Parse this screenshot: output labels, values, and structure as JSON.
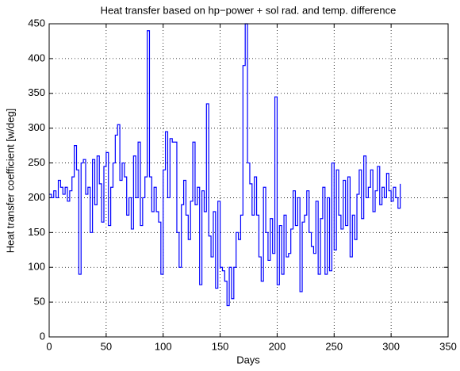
{
  "chart_data": {
    "type": "stairs",
    "title": "Heat transfer based on hp−power + sol rad. and temp. difference",
    "xlabel": "Days",
    "ylabel": "Heat transfer coefficient [w/deg]",
    "xlim": [
      0,
      350
    ],
    "xticks": [
      0,
      50,
      100,
      150,
      200,
      250,
      300,
      350
    ],
    "ylim": [
      0,
      450
    ],
    "yticks": [
      0,
      50,
      100,
      150,
      200,
      250,
      300,
      350,
      400,
      450
    ],
    "grid": true,
    "series": [
      {
        "color": "#0000ff",
        "x": [
          0,
          2,
          4,
          6,
          8,
          10,
          12,
          14,
          16,
          18,
          20,
          22,
          24,
          26,
          28,
          30,
          32,
          34,
          36,
          38,
          40,
          42,
          44,
          46,
          48,
          50,
          52,
          54,
          56,
          58,
          60,
          62,
          64,
          66,
          68,
          70,
          72,
          74,
          76,
          78,
          80,
          82,
          84,
          86,
          88,
          90,
          92,
          94,
          96,
          98,
          100,
          102,
          104,
          106,
          108,
          110,
          112,
          114,
          116,
          118,
          120,
          122,
          124,
          126,
          128,
          130,
          132,
          134,
          136,
          138,
          140,
          142,
          144,
          146,
          148,
          150,
          152,
          154,
          156,
          158,
          160,
          162,
          164,
          166,
          168,
          170,
          172,
          174,
          176,
          178,
          180,
          182,
          184,
          186,
          188,
          190,
          192,
          194,
          196,
          198,
          200,
          202,
          204,
          206,
          208,
          210,
          212,
          214,
          216,
          218,
          220,
          222,
          224,
          226,
          228,
          230,
          232,
          234,
          236,
          238,
          240,
          242,
          244,
          246,
          248,
          250,
          252,
          254,
          256,
          258,
          260,
          262,
          264,
          266,
          268,
          270,
          272,
          274,
          276,
          278,
          280,
          282,
          284,
          286,
          288,
          290,
          292,
          294,
          296,
          298,
          300,
          302,
          304,
          306,
          308
        ],
        "values": [
          205,
          200,
          210,
          200,
          225,
          215,
          205,
          215,
          195,
          210,
          230,
          275,
          240,
          90,
          250,
          255,
          205,
          215,
          150,
          255,
          190,
          260,
          220,
          165,
          245,
          265,
          160,
          215,
          250,
          290,
          305,
          225,
          250,
          230,
          175,
          200,
          155,
          260,
          200,
          280,
          160,
          200,
          230,
          440,
          230,
          180,
          215,
          180,
          165,
          90,
          240,
          295,
          200,
          285,
          280,
          280,
          150,
          100,
          190,
          225,
          175,
          140,
          195,
          280,
          190,
          215,
          75,
          210,
          180,
          335,
          145,
          115,
          180,
          70,
          195,
          100,
          95,
          80,
          45,
          100,
          55,
          100,
          150,
          140,
          175,
          390,
          450,
          250,
          220,
          175,
          230,
          175,
          115,
          80,
          215,
          150,
          110,
          170,
          120,
          345,
          75,
          160,
          90,
          175,
          115,
          120,
          155,
          210,
          160,
          200,
          65,
          165,
          175,
          210,
          150,
          130,
          120,
          195,
          90,
          170,
          215,
          90,
          200,
          95,
          250,
          125,
          240,
          175,
          155,
          225,
          160,
          230,
          115,
          175,
          140,
          205,
          240,
          170,
          260,
          200,
          215,
          240,
          180,
          210,
          245,
          190,
          215,
          200,
          235,
          210,
          195,
          215,
          200,
          185,
          220
        ]
      }
    ]
  }
}
